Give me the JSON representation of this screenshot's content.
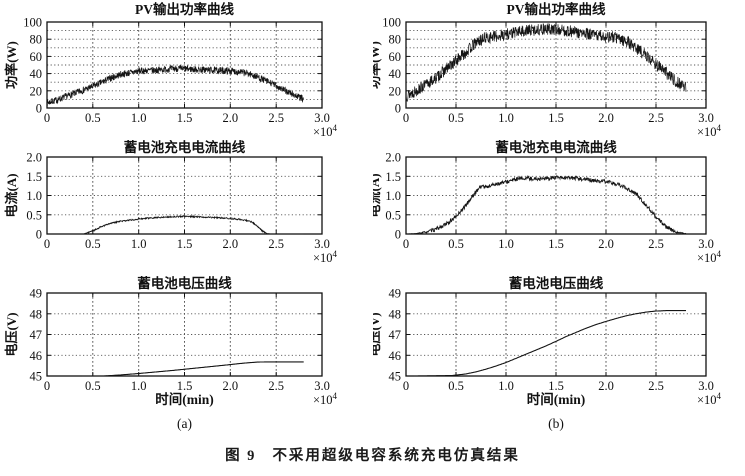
{
  "figure": {
    "caption_label": "图 9",
    "caption_text": "不采用超级电容系统充电仿真结果",
    "sub_labels": [
      "(a)",
      "(b)"
    ],
    "x_scale": {
      "base": "×10",
      "exp": "4"
    },
    "colors": {
      "curve": "#141414",
      "grid": "#555555",
      "frame": "#111111",
      "text": "#111111",
      "background": "#ffffff"
    }
  },
  "chart_data": [
    {
      "id": "pv-power-a",
      "type": "line",
      "title": "PV输出功率曲线",
      "ylabel": "功率(W)",
      "xlim": [
        0,
        3
      ],
      "ylim": [
        0,
        100
      ],
      "xtick_values": [
        0,
        0.5,
        1,
        1.5,
        2,
        2.5,
        3
      ],
      "xtick_labels": [
        "0",
        "0.5",
        "1.0",
        "1.5",
        "2.0",
        "2.5",
        "3.0"
      ],
      "ytick_values": [
        0,
        20,
        40,
        60,
        80,
        100
      ],
      "ytick_labels": [
        "0",
        "20",
        "40",
        "60",
        "80",
        "100"
      ],
      "grid_x_step": 0.5,
      "grid_y_step": 10,
      "x_scale_label": "×10⁴",
      "grid": true,
      "series": [
        {
          "name": "PV输出功率",
          "noise": 4,
          "seed": 7,
          "samples": 1000,
          "anchors": [
            [
              0,
              6
            ],
            [
              0.1,
              9
            ],
            [
              0.2,
              13
            ],
            [
              0.3,
              17
            ],
            [
              0.4,
              21
            ],
            [
              0.5,
              25
            ],
            [
              0.6,
              30
            ],
            [
              0.7,
              35
            ],
            [
              0.8,
              39
            ],
            [
              0.9,
              41
            ],
            [
              1,
              43
            ],
            [
              1.2,
              44
            ],
            [
              1.4,
              46
            ],
            [
              1.6,
              45
            ],
            [
              1.8,
              44
            ],
            [
              2,
              43
            ],
            [
              2.1,
              42
            ],
            [
              2.2,
              40
            ],
            [
              2.3,
              36
            ],
            [
              2.4,
              31
            ],
            [
              2.5,
              26
            ],
            [
              2.6,
              20
            ],
            [
              2.7,
              15
            ],
            [
              2.8,
              10
            ]
          ]
        }
      ]
    },
    {
      "id": "pv-power-b",
      "type": "line",
      "title": "PV输出功率曲线",
      "ylabel": "功率(W)",
      "xlim": [
        0,
        3
      ],
      "ylim": [
        0,
        100
      ],
      "xtick_values": [
        0,
        0.5,
        1,
        1.5,
        2,
        2.5,
        3
      ],
      "xtick_labels": [
        "0",
        "0.5",
        "1.0",
        "1.5",
        "2.0",
        "2.5",
        "3.0"
      ],
      "ytick_values": [
        0,
        20,
        40,
        60,
        80,
        100
      ],
      "ytick_labels": [
        "0",
        "20",
        "40",
        "60",
        "80",
        "100"
      ],
      "grid_x_step": 0.5,
      "grid_y_step": 10,
      "x_scale_label": "×10⁴",
      "grid": true,
      "series": [
        {
          "name": "PV输出功率",
          "noise": 7,
          "seed": 13,
          "samples": 1000,
          "anchors": [
            [
              0,
              14
            ],
            [
              0.1,
              20
            ],
            [
              0.2,
              27
            ],
            [
              0.3,
              35
            ],
            [
              0.4,
              45
            ],
            [
              0.5,
              55
            ],
            [
              0.6,
              65
            ],
            [
              0.7,
              76
            ],
            [
              0.8,
              82
            ],
            [
              0.9,
              83
            ],
            [
              1,
              86
            ],
            [
              1.1,
              88
            ],
            [
              1.2,
              90
            ],
            [
              1.4,
              92
            ],
            [
              1.6,
              90
            ],
            [
              1.8,
              86
            ],
            [
              2,
              83
            ],
            [
              2.1,
              82
            ],
            [
              2.2,
              78
            ],
            [
              2.3,
              70
            ],
            [
              2.4,
              61
            ],
            [
              2.5,
              51
            ],
            [
              2.6,
              41
            ],
            [
              2.7,
              31
            ],
            [
              2.8,
              25
            ]
          ]
        }
      ]
    },
    {
      "id": "battery-current-a",
      "type": "line",
      "title": "蓄电池充电电流曲线",
      "ylabel": "电流(A)",
      "xlim": [
        0,
        3
      ],
      "ylim": [
        0,
        2
      ],
      "xtick_values": [
        0,
        0.5,
        1,
        1.5,
        2,
        2.5,
        3
      ],
      "xtick_labels": [
        "0",
        "0.5",
        "1.0",
        "1.5",
        "2.0",
        "2.5",
        "3.0"
      ],
      "ytick_values": [
        0,
        0.5,
        1,
        1.5,
        2
      ],
      "ytick_labels": [
        "0",
        "0.5",
        "1.0",
        "1.5",
        "2.0"
      ],
      "grid_x_step": 0.5,
      "grid_y_step": 0.5,
      "x_scale_label": "×10⁴",
      "grid": true,
      "series": [
        {
          "name": "充电电流",
          "noise": 0.018,
          "noise_gate": 0.05,
          "seed": 21,
          "samples": 700,
          "anchors": [
            [
              0,
              0
            ],
            [
              0.4,
              0
            ],
            [
              0.5,
              0.08
            ],
            [
              0.6,
              0.2
            ],
            [
              0.7,
              0.28
            ],
            [
              0.8,
              0.33
            ],
            [
              0.9,
              0.36
            ],
            [
              1,
              0.39
            ],
            [
              1.1,
              0.41
            ],
            [
              1.2,
              0.43
            ],
            [
              1.4,
              0.45
            ],
            [
              1.5,
              0.46
            ],
            [
              1.7,
              0.44
            ],
            [
              1.9,
              0.42
            ],
            [
              2,
              0.4
            ],
            [
              2.1,
              0.38
            ],
            [
              2.2,
              0.34
            ],
            [
              2.25,
              0.29
            ],
            [
              2.3,
              0.19
            ],
            [
              2.35,
              0.08
            ],
            [
              2.4,
              0.01
            ],
            [
              2.45,
              0
            ],
            [
              2.8,
              0
            ]
          ]
        }
      ]
    },
    {
      "id": "battery-current-b",
      "type": "line",
      "title": "蓄电池充电电流曲线",
      "ylabel": "电流(A)",
      "xlim": [
        0,
        3
      ],
      "ylim": [
        0,
        2
      ],
      "xtick_values": [
        0,
        0.5,
        1,
        1.5,
        2,
        2.5,
        3
      ],
      "xtick_labels": [
        "0",
        "0.5",
        "1.0",
        "1.5",
        "2.0",
        "2.5",
        "3.0"
      ],
      "ytick_values": [
        0,
        0.5,
        1,
        1.5,
        2
      ],
      "ytick_labels": [
        "0",
        "0.5",
        "1.0",
        "1.5",
        "2.0"
      ],
      "grid_x_step": 0.5,
      "grid_y_step": 0.5,
      "x_scale_label": "×10⁴",
      "grid": true,
      "series": [
        {
          "name": "充电电流",
          "noise": 0.05,
          "noise_gate": 0.1,
          "seed": 33,
          "samples": 700,
          "anchors": [
            [
              0,
              0
            ],
            [
              0.1,
              0.01
            ],
            [
              0.2,
              0.05
            ],
            [
              0.3,
              0.12
            ],
            [
              0.4,
              0.25
            ],
            [
              0.5,
              0.45
            ],
            [
              0.6,
              0.75
            ],
            [
              0.7,
              1.1
            ],
            [
              0.75,
              1.25
            ],
            [
              0.8,
              1.22
            ],
            [
              0.9,
              1.3
            ],
            [
              1,
              1.35
            ],
            [
              1.1,
              1.42
            ],
            [
              1.2,
              1.45
            ],
            [
              1.3,
              1.43
            ],
            [
              1.5,
              1.46
            ],
            [
              1.7,
              1.45
            ],
            [
              1.9,
              1.38
            ],
            [
              2,
              1.36
            ],
            [
              2.1,
              1.3
            ],
            [
              2.2,
              1.2
            ],
            [
              2.3,
              1.05
            ],
            [
              2.4,
              0.75
            ],
            [
              2.5,
              0.45
            ],
            [
              2.6,
              0.18
            ],
            [
              2.7,
              0.05
            ],
            [
              2.8,
              0.01
            ]
          ]
        }
      ]
    },
    {
      "id": "battery-voltage-a",
      "type": "line",
      "title": "蓄电池电压曲线",
      "ylabel": "电压(V)",
      "xlabel": "时间(min)",
      "xlim": [
        0,
        3
      ],
      "ylim": [
        45,
        49
      ],
      "xtick_values": [
        0,
        0.5,
        1,
        1.5,
        2,
        2.5,
        3
      ],
      "xtick_labels": [
        "0",
        "0.5",
        "1.0",
        "1.5",
        "2.0",
        "2.5",
        "3.0"
      ],
      "ytick_values": [
        45,
        46,
        47,
        48,
        49
      ],
      "ytick_labels": [
        "45",
        "46",
        "47",
        "48",
        "49"
      ],
      "grid_x_step": 0.5,
      "grid_y_step": 1,
      "x_scale_label": "×10⁴",
      "grid": true,
      "series": [
        {
          "name": "蓄电池电压",
          "noise": 0,
          "seed": 1,
          "samples": 300,
          "anchors": [
            [
              0.38,
              45
            ],
            [
              0.62,
              45
            ],
            [
              0.8,
              45.05
            ],
            [
              1,
              45.12
            ],
            [
              1.2,
              45.2
            ],
            [
              1.4,
              45.28
            ],
            [
              1.6,
              45.37
            ],
            [
              1.8,
              45.46
            ],
            [
              2,
              45.55
            ],
            [
              2.1,
              45.6
            ],
            [
              2.2,
              45.64
            ],
            [
              2.3,
              45.67
            ],
            [
              2.4,
              45.68
            ],
            [
              2.8,
              45.68
            ]
          ]
        }
      ]
    },
    {
      "id": "battery-voltage-b",
      "type": "line",
      "title": "蓄电池电压曲线",
      "ylabel": "电压(V)",
      "xlabel": "时间(min)",
      "xlim": [
        0,
        3
      ],
      "ylim": [
        45,
        49
      ],
      "xtick_values": [
        0,
        0.5,
        1,
        1.5,
        2,
        2.5,
        3
      ],
      "xtick_labels": [
        "0",
        "0.5",
        "1.0",
        "1.5",
        "2.0",
        "2.5",
        "3.0"
      ],
      "ytick_values": [
        45,
        46,
        47,
        48,
        49
      ],
      "ytick_labels": [
        "45",
        "46",
        "47",
        "48",
        "49"
      ],
      "grid_x_step": 0.5,
      "grid_y_step": 1,
      "x_scale_label": "×10⁴",
      "grid": true,
      "series": [
        {
          "name": "蓄电池电压",
          "noise": 0,
          "seed": 1,
          "samples": 300,
          "anchors": [
            [
              0.08,
              45
            ],
            [
              0.45,
              45.02
            ],
            [
              0.6,
              45.1
            ],
            [
              0.7,
              45.2
            ],
            [
              0.8,
              45.33
            ],
            [
              0.9,
              45.48
            ],
            [
              1,
              45.65
            ],
            [
              1.1,
              45.85
            ],
            [
              1.2,
              46.05
            ],
            [
              1.3,
              46.25
            ],
            [
              1.4,
              46.45
            ],
            [
              1.5,
              46.67
            ],
            [
              1.6,
              46.9
            ],
            [
              1.7,
              47.1
            ],
            [
              1.8,
              47.3
            ],
            [
              1.9,
              47.48
            ],
            [
              2,
              47.63
            ],
            [
              2.1,
              47.77
            ],
            [
              2.2,
              47.9
            ],
            [
              2.3,
              48
            ],
            [
              2.4,
              48.08
            ],
            [
              2.5,
              48.13
            ],
            [
              2.6,
              48.15
            ],
            [
              2.8,
              48.15
            ]
          ]
        }
      ]
    }
  ]
}
